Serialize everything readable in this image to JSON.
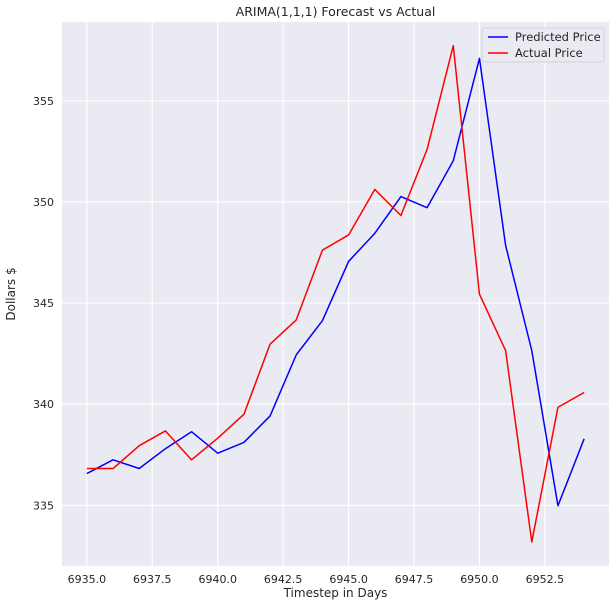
{
  "chart_data": {
    "type": "line",
    "title": "ARIMA(1,1,1) Forecast vs Actual",
    "xlabel": "Timestep in Days",
    "ylabel": "Dollars $",
    "xlim": [
      6934.05,
      6954.95
    ],
    "ylim": [
      332.0,
      358.9
    ],
    "xticks": [
      6935.0,
      6937.5,
      6940.0,
      6942.5,
      6945.0,
      6947.5,
      6950.0,
      6952.5
    ],
    "xtick_labels": [
      "6935.0",
      "6937.5",
      "6940.0",
      "6942.5",
      "6945.0",
      "6947.5",
      "6950.0",
      "6952.5"
    ],
    "yticks": [
      335,
      340,
      345,
      350,
      355
    ],
    "ytick_labels": [
      "335",
      "340",
      "345",
      "350",
      "355"
    ],
    "grid": true,
    "legend_position": "upper right",
    "x": [
      6935,
      6936,
      6937,
      6938,
      6939,
      6940,
      6941,
      6942,
      6943,
      6944,
      6945,
      6946,
      6947,
      6948,
      6949,
      6950,
      6951,
      6952,
      6953,
      6954
    ],
    "series": [
      {
        "name": "Predicted Price",
        "color": "#0000ff",
        "values": [
          336.57,
          337.25,
          336.82,
          337.8,
          338.64,
          337.58,
          338.11,
          339.42,
          342.44,
          344.13,
          347.06,
          348.45,
          350.27,
          349.72,
          352.04,
          357.1,
          347.85,
          342.65,
          334.98,
          338.29
        ]
      },
      {
        "name": "Actual Price",
        "color": "#ff0000",
        "values": [
          336.82,
          336.82,
          337.95,
          338.68,
          337.25,
          338.32,
          339.5,
          342.97,
          344.17,
          347.62,
          348.37,
          350.62,
          349.33,
          352.6,
          357.73,
          345.44,
          342.65,
          333.19,
          339.85,
          340.58
        ]
      }
    ]
  }
}
